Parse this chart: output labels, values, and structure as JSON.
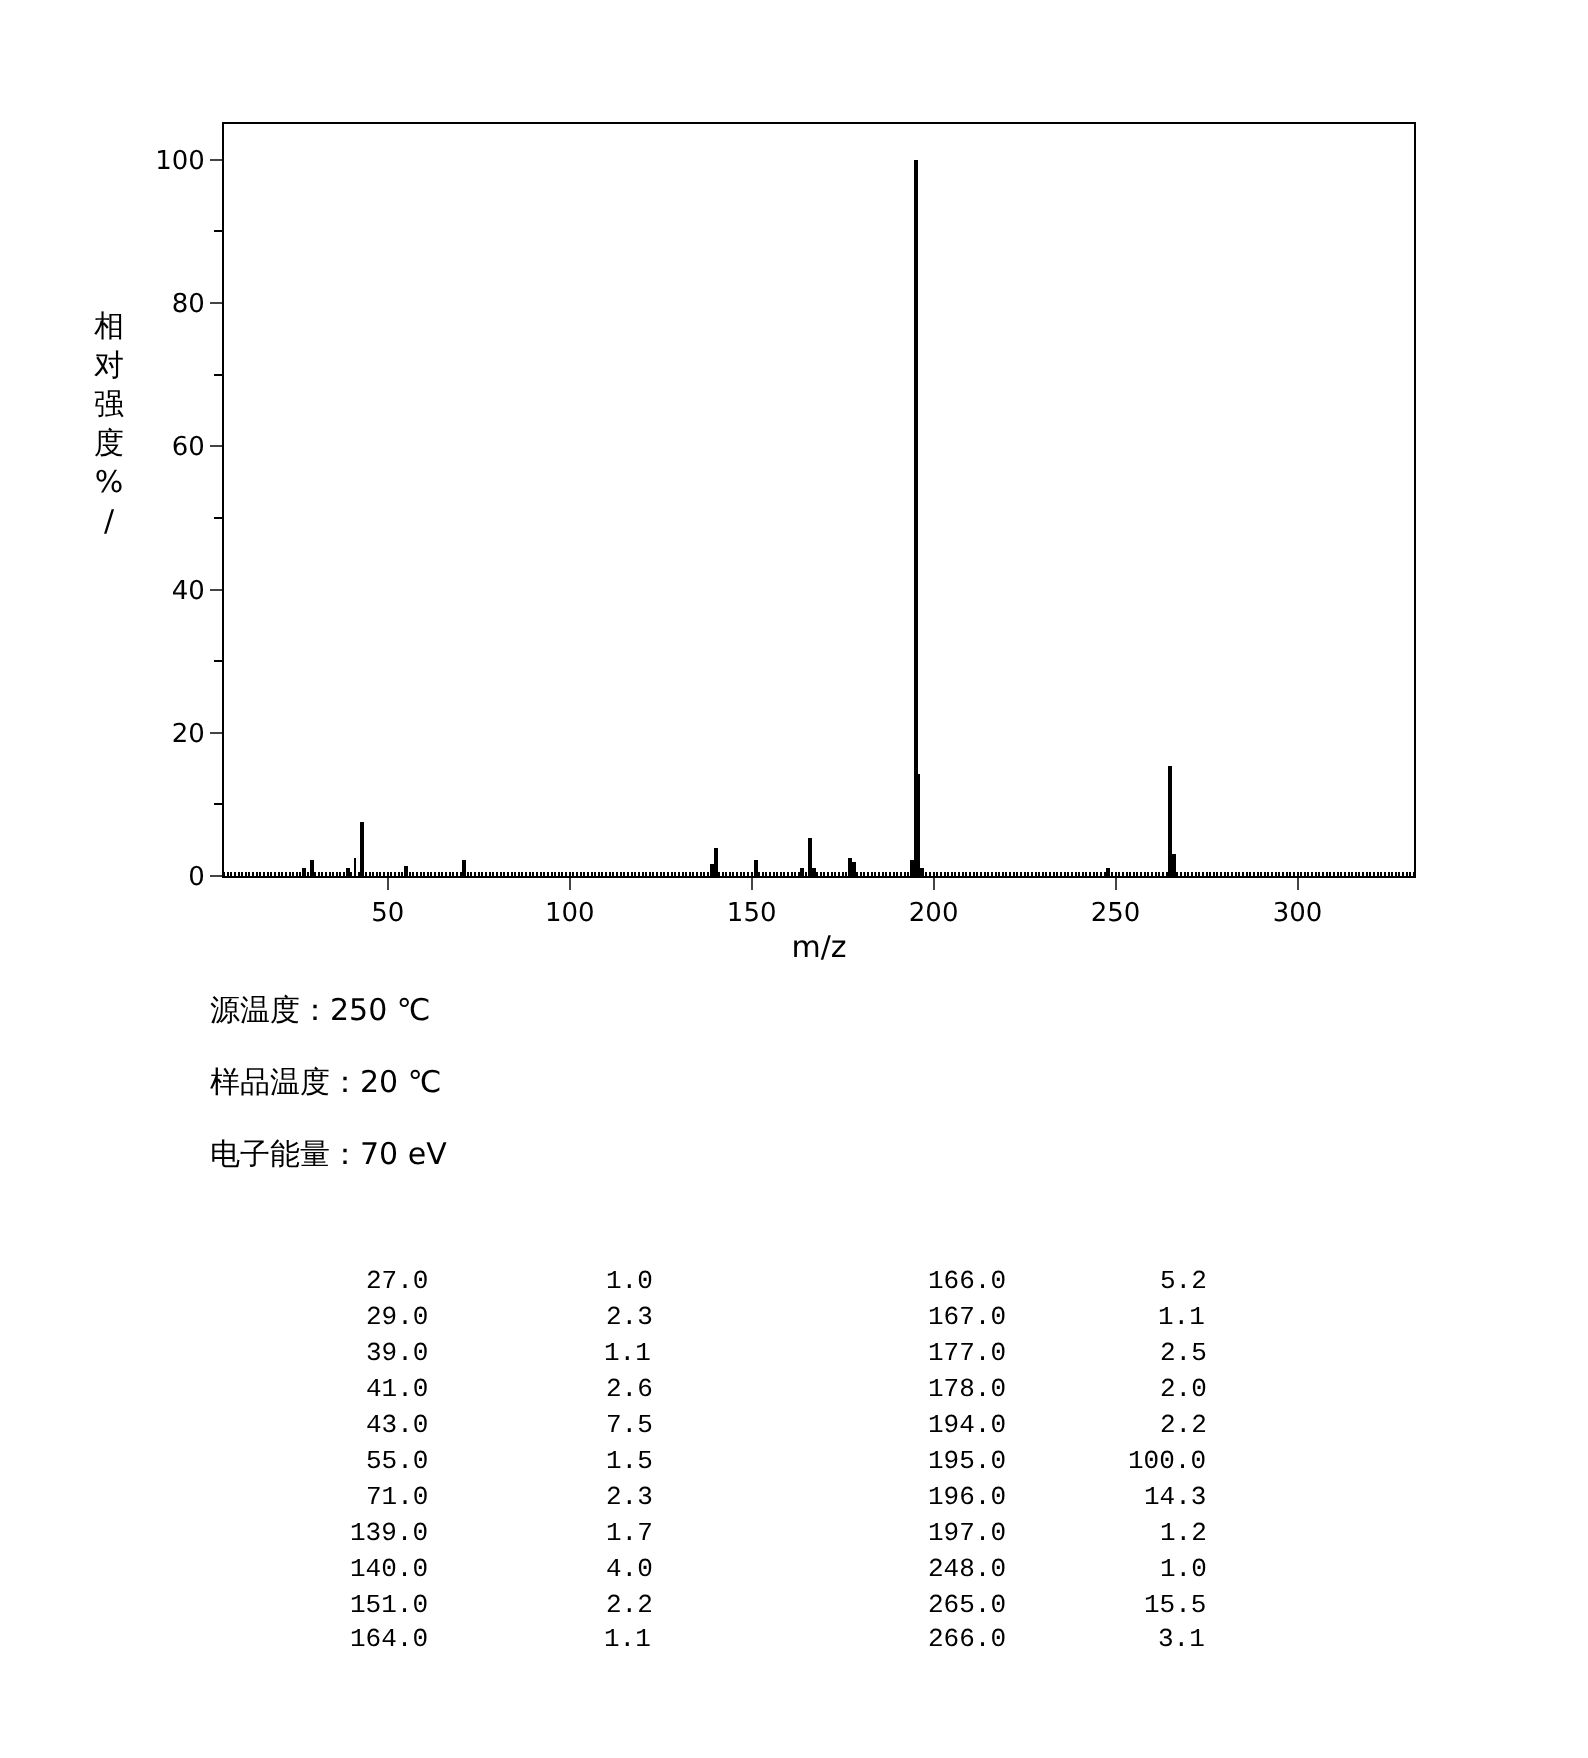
{
  "chart_data": {
    "type": "bar",
    "xlabel": "m/z",
    "ylabel": "相对强度%/",
    "x": [
      27,
      29,
      39,
      41,
      43,
      55,
      71,
      139,
      140,
      151,
      164,
      166,
      167,
      177,
      178,
      194,
      195,
      196,
      197,
      248,
      265,
      266
    ],
    "values": [
      1.0,
      2.3,
      1.1,
      2.6,
      7.5,
      1.5,
      2.3,
      1.7,
      4.0,
      2.2,
      1.1,
      5.2,
      1.1,
      2.5,
      2.0,
      2.2,
      100.0,
      14.3,
      1.2,
      1.0,
      15.5,
      3.1
    ],
    "color": "#000000",
    "xlim": [
      5,
      332
    ],
    "xticks": [
      50,
      100,
      150,
      200,
      250,
      300
    ],
    "ylim": [
      0,
      105
    ],
    "yticks": [
      0,
      20,
      40,
      60,
      80,
      100
    ],
    "legend": false,
    "annotations": [
      "源温度：250 ℃",
      "样品温度：20 ℃",
      "电子能量：70 eV",
      "27.0",
      "1.0",
      "29.0",
      "2.3",
      "39.0",
      "1.1",
      "41.0",
      "2.6",
      "43.0",
      "7.5",
      "55.0",
      "1.5",
      "71.0",
      "2.3",
      "139.0",
      "1.7",
      "140.0",
      "4.0",
      "151.0",
      "2.2",
      "164.0",
      "1.1",
      "166.0",
      "5.2",
      "167.0",
      "1.1",
      "177.0",
      "2.5",
      "178.0",
      "2.0",
      "194.0",
      "2.2",
      "195.0",
      "100.0",
      "196.0",
      "14.3",
      "197.0",
      "1.2",
      "248.0",
      "1.0",
      "265.0",
      "15.5",
      "266.0",
      "3.1"
    ]
  }
}
